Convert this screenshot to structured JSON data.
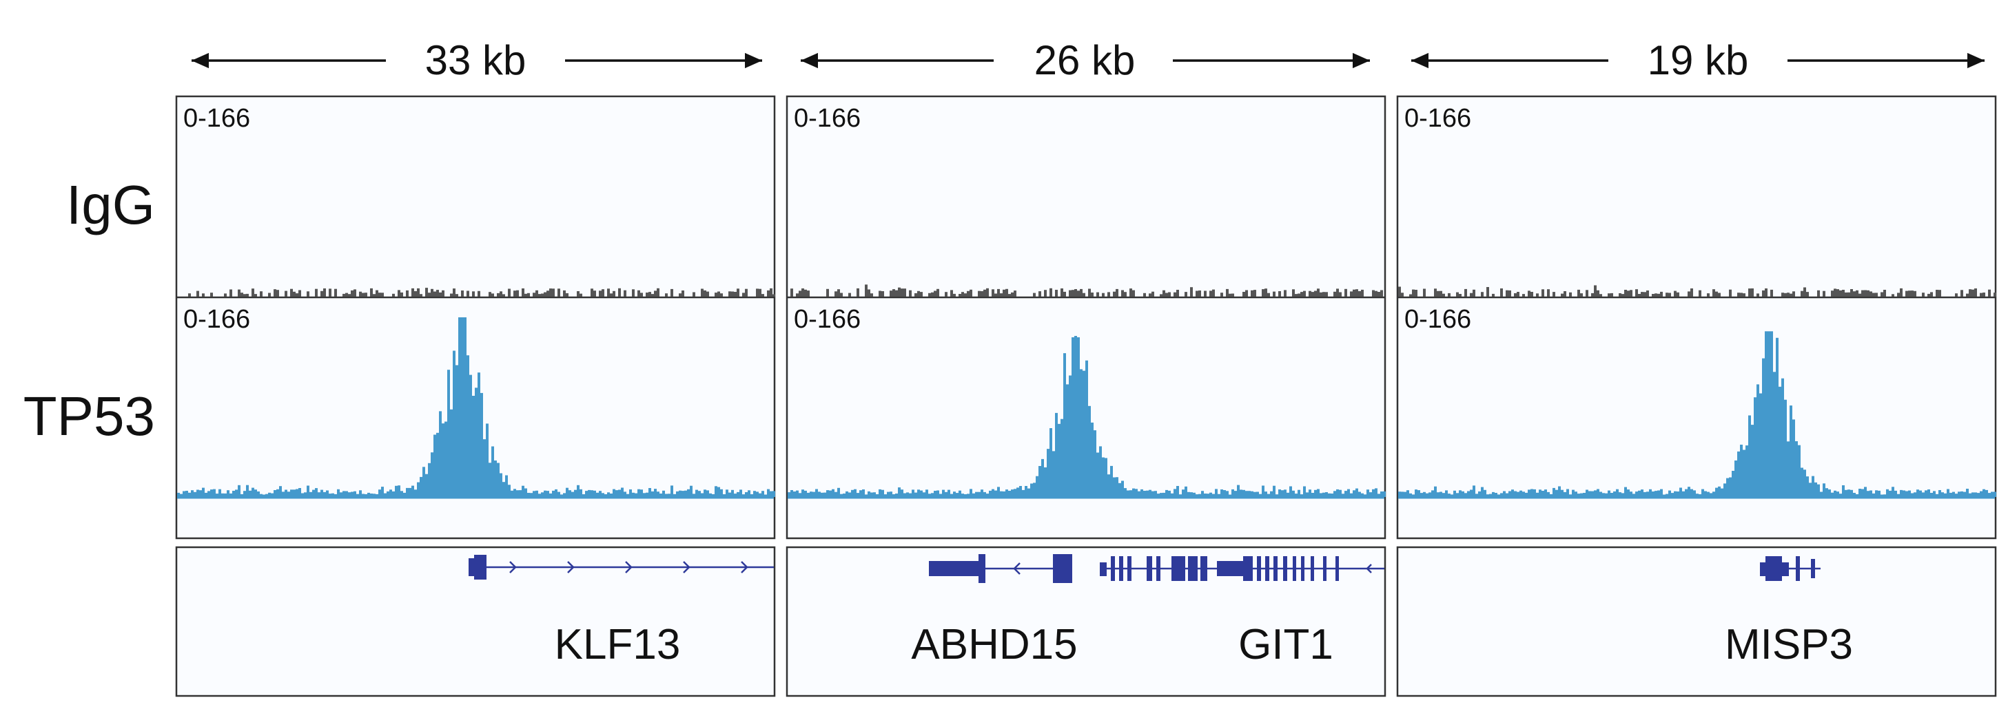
{
  "colors": {
    "igg": "#555555",
    "tp53": "#4499cc",
    "gene": "#2e3a9a",
    "frame": "#333333",
    "panel_bg": "#fafcff"
  },
  "rows": {
    "igg_label": "IgG",
    "tp53_label": "TP53"
  },
  "panels": [
    {
      "span_label": "33 kb",
      "igg_scale": "0-166",
      "tp53_scale": "0-166",
      "genes": [
        {
          "name": "KLF13"
        }
      ],
      "peak": {
        "center": 0.475,
        "height": 0.9
      }
    },
    {
      "span_label": "26 kb",
      "igg_scale": "0-166",
      "tp53_scale": "0-166",
      "genes": [
        {
          "name": "ABHD15"
        },
        {
          "name": "GIT1"
        }
      ],
      "peak": {
        "center": 0.48,
        "height": 0.8
      }
    },
    {
      "span_label": "19 kb",
      "igg_scale": "0-166",
      "tp53_scale": "0-166",
      "genes": [
        {
          "name": "MISP3"
        }
      ],
      "peak": {
        "center": 0.62,
        "height": 0.83
      }
    }
  ]
}
